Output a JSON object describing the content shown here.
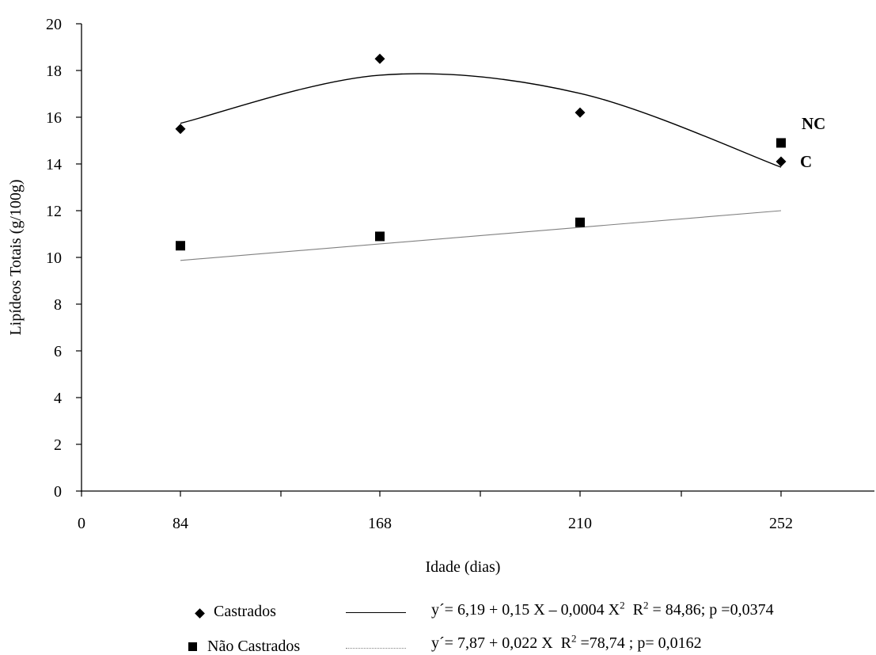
{
  "chart_data": {
    "type": "scatter",
    "ylabel": "Lipídeos Totais (g/100g)",
    "xlabel": "Idade (dias)",
    "x_ticks": [
      "0",
      "84",
      "168",
      "210",
      "252"
    ],
    "y_ticks": [
      0,
      2,
      4,
      6,
      8,
      10,
      12,
      14,
      16,
      18,
      20
    ],
    "ylim": [
      0,
      20
    ],
    "x_categories": [
      "84",
      "168",
      "210",
      "252"
    ],
    "series": [
      {
        "name": "Castrados",
        "marker": "diamond",
        "values": [
          15.5,
          18.5,
          16.2,
          14.1
        ],
        "point_label": "C",
        "trend": {
          "style": "solid",
          "color": "#000000",
          "equation": "y´= 6,19 + 0,15 X – 0,0004 X",
          "equation_sup": "2",
          "r2_prefix": "R",
          "r2_sup": "2",
          "r2_rest": " = 84,86; p =0,0374",
          "fit_values": [
            15.74,
            17.8,
            17.02,
            13.86
          ]
        }
      },
      {
        "name": "Não Castrados",
        "marker": "square",
        "values": [
          10.5,
          10.9,
          11.5,
          14.9
        ],
        "point_label": "NC",
        "trend": {
          "style": "light",
          "color": "#808080",
          "equation": "y´= 7,87 + 0,022 X",
          "r2_prefix": "R",
          "r2_sup": "2",
          "r2_rest": " =78,74 ; p= 0,0162",
          "fit_values": [
            9.87,
            12.0
          ]
        }
      }
    ],
    "grid": false,
    "legend_position": "bottom"
  }
}
